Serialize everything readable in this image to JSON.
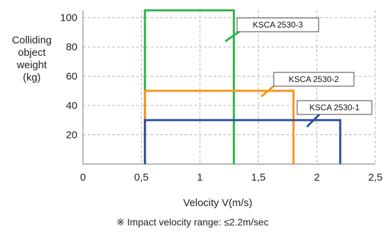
{
  "chart_data": {
    "type": "line",
    "ylabel": "Colliding\nobject\nweight\n(kg)",
    "xlabel": "Velocity  V(m/s)",
    "note": "※ Impact velocity range: ≤2.2m/sec",
    "xlim": [
      0,
      2.5
    ],
    "ylim": [
      0,
      105
    ],
    "x_ticks": [
      "0",
      "0,5",
      "1",
      "1,5",
      "2",
      "2,5"
    ],
    "x_tick_values": [
      0,
      0.5,
      1,
      1.5,
      2,
      2.5
    ],
    "y_ticks": [
      "20",
      "40",
      "60",
      "80",
      "100"
    ],
    "y_tick_values": [
      20,
      40,
      60,
      80,
      100
    ],
    "grid": true,
    "series": [
      {
        "name": "KSCA 2530-3",
        "color": "#2db34a",
        "x": [
          0.53,
          0.53,
          1.29,
          1.29
        ],
        "y": [
          0,
          105,
          105,
          0
        ]
      },
      {
        "name": "KSCA 2530-2",
        "color": "#f7941d",
        "x": [
          0.53,
          0.53,
          1.8,
          1.8
        ],
        "y": [
          0,
          50,
          50,
          0
        ]
      },
      {
        "name": "KSCA 2530-1",
        "color": "#2e4f9e",
        "x": [
          0.53,
          0.53,
          2.2,
          2.2
        ],
        "y": [
          0,
          30,
          30,
          0
        ]
      }
    ]
  }
}
